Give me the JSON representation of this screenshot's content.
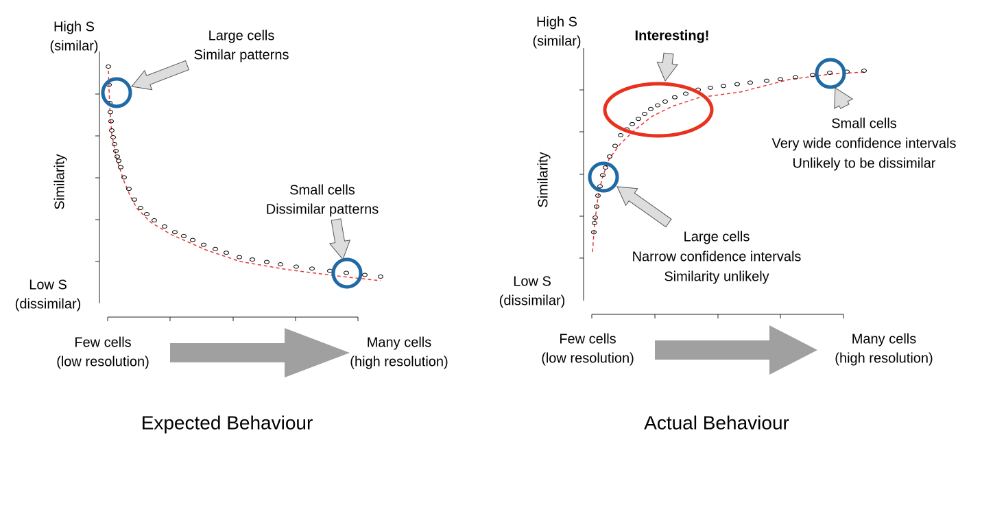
{
  "panels": [
    {
      "title": "Expected Behaviour",
      "y_axis": {
        "label": "Similarity",
        "top": [
          "High S",
          "(similar)"
        ],
        "bottom": [
          "Low S",
          "(dissimilar)"
        ]
      },
      "x_axis": {
        "left": [
          "Few cells",
          "(low resolution)"
        ],
        "right": [
          "Many cells",
          "(high resolution)"
        ]
      },
      "callouts": [
        {
          "lines": [
            "Large cells",
            "Similar patterns"
          ]
        },
        {
          "lines": [
            "Small cells",
            "Dissimilar patterns"
          ]
        }
      ]
    },
    {
      "title": "Actual Behaviour",
      "y_axis": {
        "label": "Similarity",
        "top": [
          "High S",
          "(similar)"
        ],
        "bottom": [
          "Low S",
          "(dissimilar)"
        ]
      },
      "x_axis": {
        "left": [
          "Few cells",
          "(low resolution)"
        ],
        "right": [
          "Many cells",
          "(high resolution)"
        ]
      },
      "highlight": "Interesting!",
      "callouts": [
        {
          "lines": [
            "Large cells",
            "Narrow confidence intervals",
            "Similarity unlikely"
          ]
        },
        {
          "lines": [
            "Small cells",
            "Very wide confidence intervals",
            "Unlikely to be dissimilar"
          ]
        }
      ]
    }
  ]
}
